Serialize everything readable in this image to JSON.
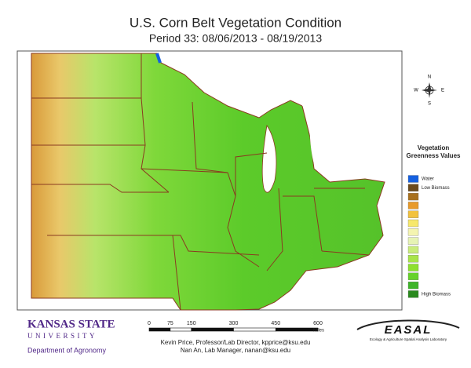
{
  "header": {
    "title": "U.S. Corn Belt Vegetation Condition",
    "subtitle": "Period 33: 08/06/2013 - 08/19/2013"
  },
  "compass": {
    "north": "N",
    "south": "S",
    "east": "E",
    "west": "W"
  },
  "legend": {
    "title": "Vegetation Greenness Values",
    "items": [
      {
        "color": "#1560e0",
        "label": "Water"
      },
      {
        "color": "#6b4a1c",
        "label": "Low Biomass"
      },
      {
        "color": "#a8701e"
      },
      {
        "color": "#e89a2a"
      },
      {
        "color": "#f2c23e"
      },
      {
        "color": "#f7e86a"
      },
      {
        "color": "#f4f4b0"
      },
      {
        "color": "#e6f3b4"
      },
      {
        "color": "#c9ec7c"
      },
      {
        "color": "#a8e44a"
      },
      {
        "color": "#8ee030"
      },
      {
        "color": "#66d22a"
      },
      {
        "color": "#3fb52a"
      },
      {
        "color": "#2a8a1e",
        "label": "High Biomass"
      }
    ]
  },
  "scale_bar": {
    "ticks": [
      0,
      75,
      150,
      300,
      450,
      600
    ],
    "unit": "Miles"
  },
  "logos": {
    "university": "KANSAS STATE",
    "university_line2": "UNIVERSITY",
    "department": "Department of Agronomy",
    "lab": "EASAL",
    "lab_full": "Ecology & Agriculture Spatial Analysis Laboratory"
  },
  "credits": [
    "Kevin Price, Professor/Lab Director, kpprice@ksu.edu",
    "Nan An, Lab Manager, nanan@ksu.edu"
  ]
}
